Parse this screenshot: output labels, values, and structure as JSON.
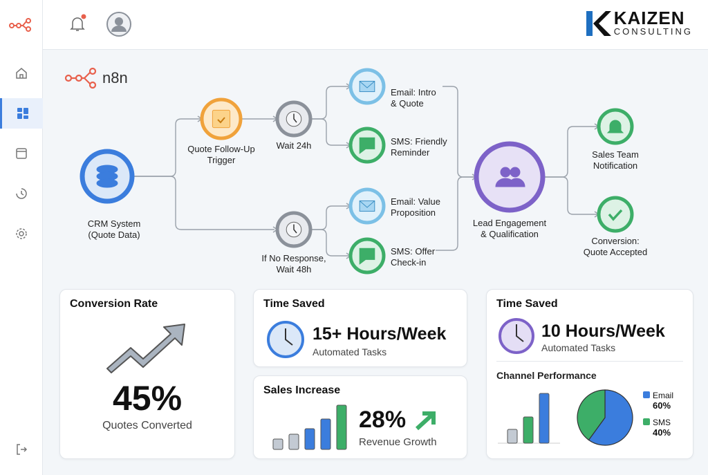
{
  "brand": {
    "name": "KAIZEN",
    "sub": "CONSULTING",
    "workflow_logo": "n8n"
  },
  "colors": {
    "blue": "#3b7ddd",
    "orange": "#f0a23b",
    "green": "#3dae68",
    "purple": "#7d62c8",
    "gray": "#8b919a",
    "light_blue": "#7cc0e6",
    "accent_red": "#e8604c"
  },
  "sidebar": {
    "items": [
      {
        "icon": "home-icon"
      },
      {
        "icon": "dashboard-icon",
        "active": true
      },
      {
        "icon": "calendar-icon"
      },
      {
        "icon": "history-icon"
      },
      {
        "icon": "settings-icon"
      },
      {
        "icon": "logout-icon"
      }
    ]
  },
  "diagram": {
    "nodes": {
      "crm": {
        "l1": "CRM System",
        "l2": "(Quote Data)",
        "icon": "database-icon"
      },
      "trigger": {
        "l1": "Quote Follow-Up",
        "l2": "Trigger",
        "icon": "calendar-check-icon"
      },
      "wait24": {
        "l1": "Wait 24h",
        "icon": "clock-icon"
      },
      "email1": {
        "l1": "Email: Intro",
        "l2": "& Quote",
        "icon": "mail-icon"
      },
      "sms1": {
        "l1": "SMS: Friendly",
        "l2": "Reminder",
        "icon": "chat-icon"
      },
      "wait48": {
        "l1": "If No Response,",
        "l2": "Wait 48h",
        "icon": "clock-icon"
      },
      "email2": {
        "l1": "Email: Value",
        "l2": "Proposition",
        "icon": "mail-icon"
      },
      "sms2": {
        "l1": "SMS: Offer",
        "l2": "Check-in",
        "icon": "chat-icon"
      },
      "lead": {
        "l1": "Lead Engagement",
        "l2": "& Qualification",
        "icon": "users-icon"
      },
      "notify": {
        "l1": "Sales Team",
        "l2": "Notification",
        "icon": "bell-icon"
      },
      "convert": {
        "l1": "Conversion:",
        "l2": "Quote Accepted",
        "icon": "check-icon"
      }
    }
  },
  "cards": {
    "conversion": {
      "title": "Conversion Rate",
      "value": "45%",
      "label": "Quotes Converted"
    },
    "time1": {
      "title": "Time Saved",
      "value": "15+ Hours/Week",
      "label": "Automated Tasks"
    },
    "sales": {
      "title": "Sales Increase",
      "value": "28%",
      "label": "Revenue Growth",
      "bars": [
        15,
        22,
        30,
        44,
        64
      ]
    },
    "time2": {
      "title": "Time Saved",
      "value": "10 Hours/Week",
      "label": "Automated Tasks",
      "channel_title": "Channel Performance",
      "bars": [
        20,
        38,
        72
      ],
      "legend": [
        {
          "name": "Email",
          "value": "60%"
        },
        {
          "name": "SMS",
          "value": "40%"
        }
      ],
      "pie": [
        60,
        40
      ]
    }
  }
}
